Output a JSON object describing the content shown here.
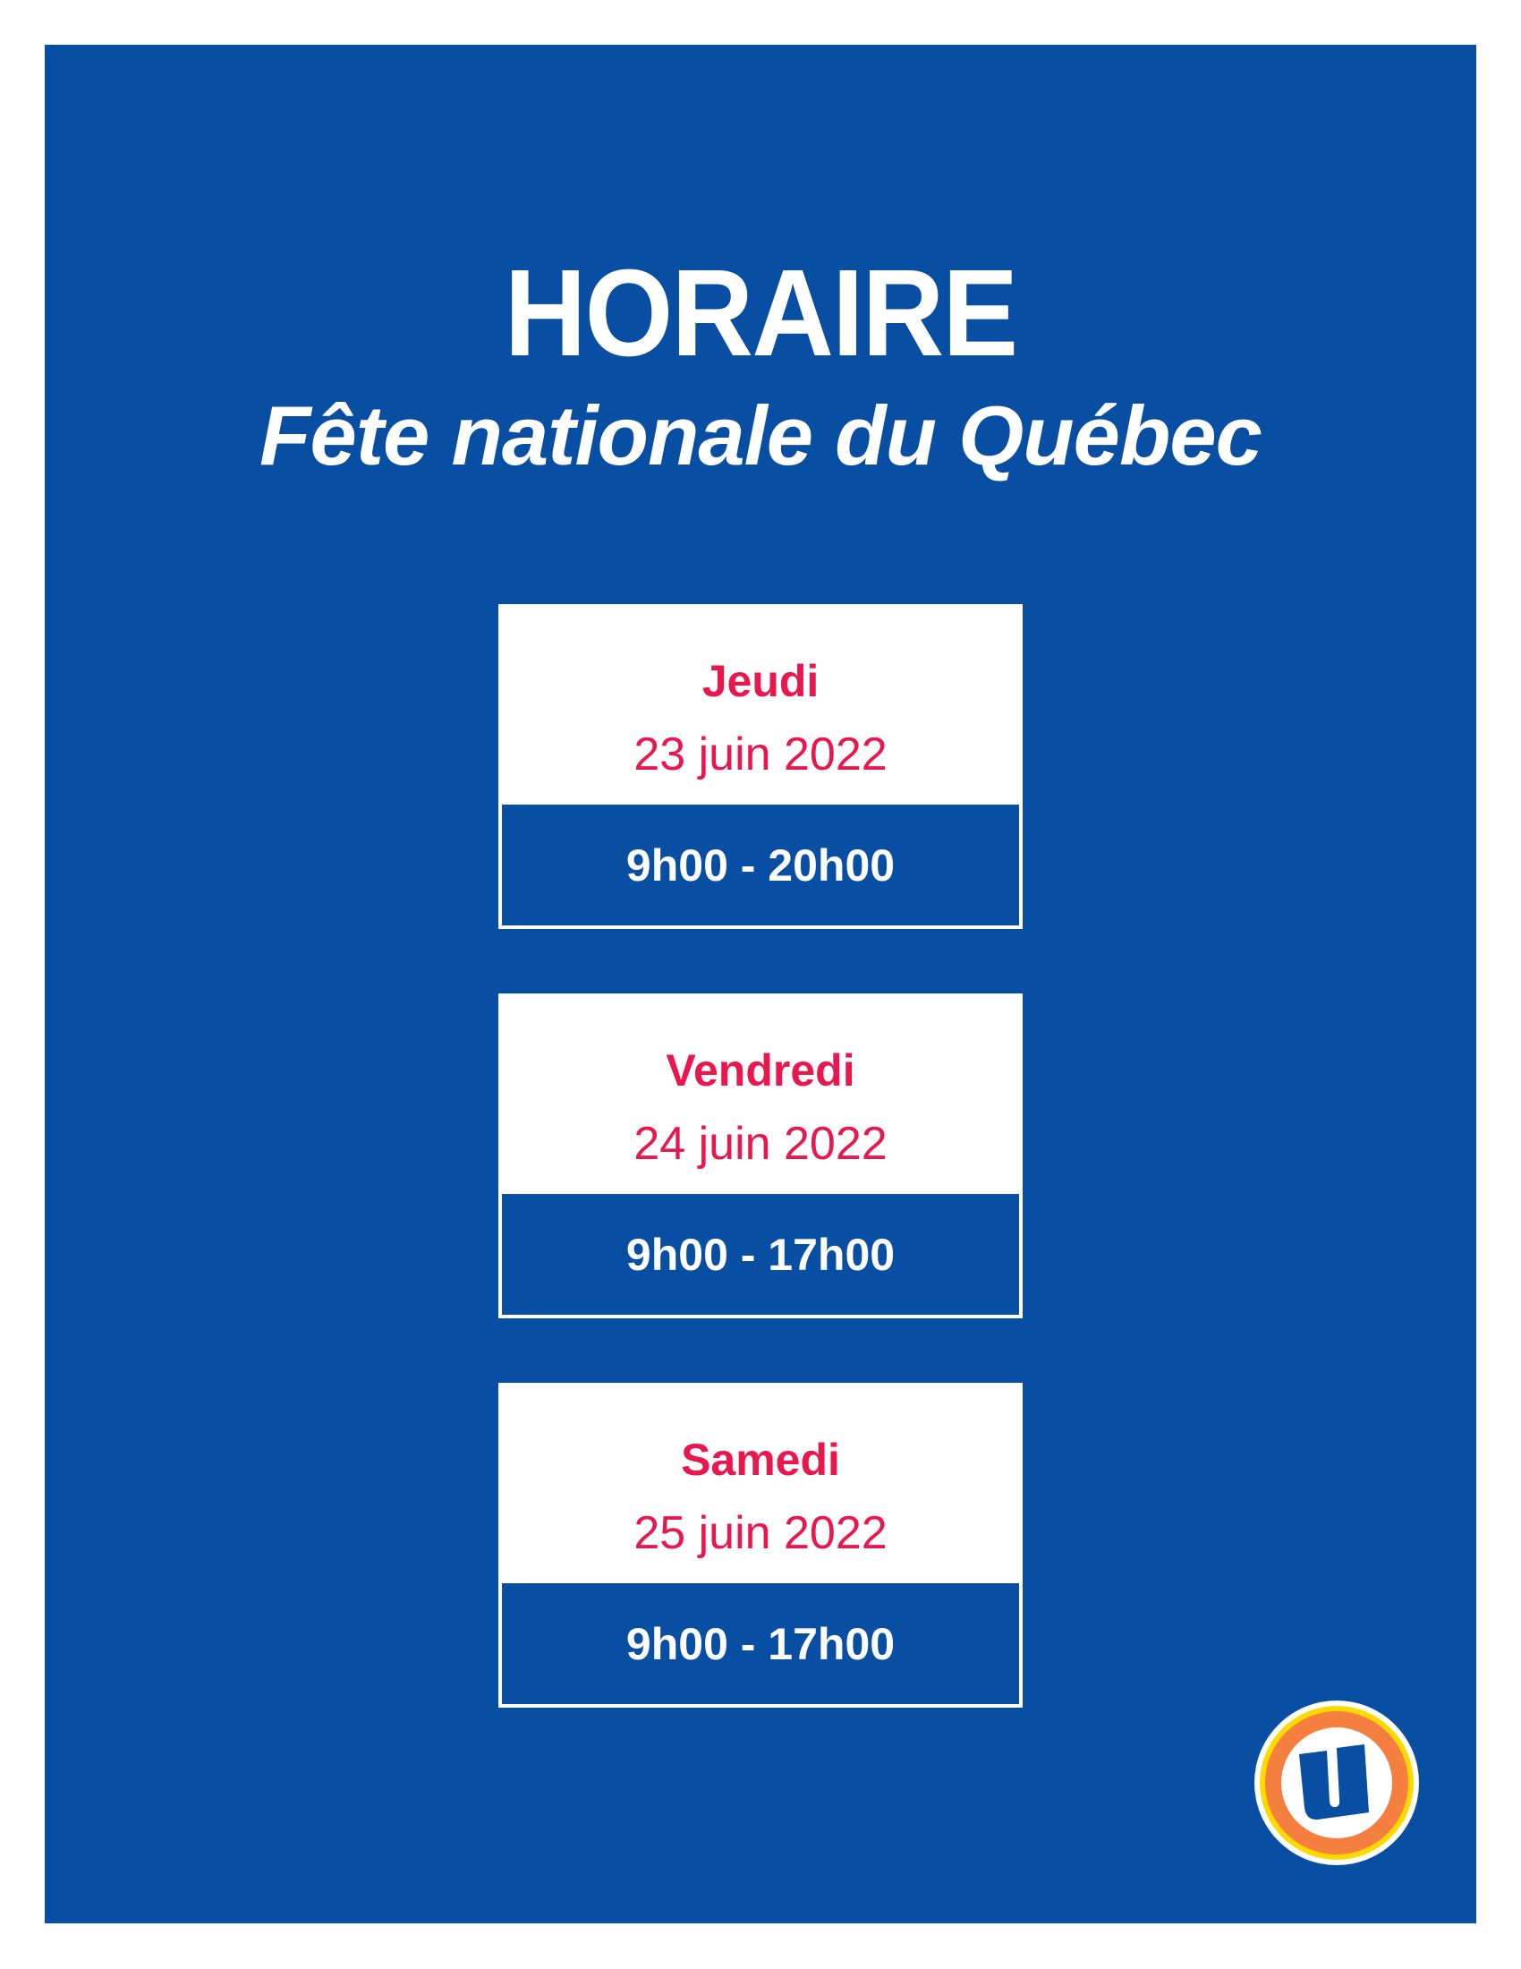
{
  "header": {
    "title": "HORAIRE",
    "subtitle": "Fête nationale du Québec"
  },
  "schedule": [
    {
      "day": "Jeudi",
      "date": "23 juin 2022",
      "hours": "9h00 - 20h00"
    },
    {
      "day": "Vendredi",
      "date": "24 juin 2022",
      "hours": "9h00 - 17h00"
    },
    {
      "day": "Samedi",
      "date": "25 juin 2022",
      "hours": "9h00 - 17h00"
    }
  ],
  "colors": {
    "background": "#084ea3",
    "accent": "#e8184f",
    "logo_orange": "#f47f3e",
    "logo_yellow": "#ffd900"
  },
  "logo": {
    "icon": "u-logo-icon"
  }
}
